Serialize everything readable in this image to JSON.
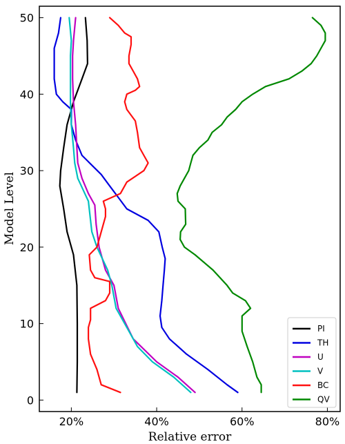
{
  "chart_data": {
    "type": "line",
    "xlabel": "Relative error",
    "ylabel": "Model Level",
    "xlim": [
      0.125,
      0.83
    ],
    "ylim": [
      -1.5,
      51.5
    ],
    "xticks": [
      0.2,
      0.4,
      0.6,
      0.8
    ],
    "xtick_labels": [
      "20%",
      "40%",
      "60%",
      "80%"
    ],
    "yticks": [
      0,
      10,
      20,
      30,
      40,
      50
    ],
    "ytick_labels": [
      "0",
      "10",
      "20",
      "30",
      "40",
      "50"
    ],
    "grid": false,
    "legend_position": "lower-right",
    "series": [
      {
        "name": "PI",
        "color": "#000000",
        "points": [
          [
            0.213,
            1
          ],
          [
            0.214,
            5
          ],
          [
            0.214,
            10
          ],
          [
            0.213,
            15
          ],
          [
            0.205,
            19
          ],
          [
            0.19,
            22
          ],
          [
            0.182,
            25
          ],
          [
            0.173,
            28
          ],
          [
            0.175,
            30
          ],
          [
            0.182,
            33
          ],
          [
            0.19,
            36
          ],
          [
            0.205,
            39
          ],
          [
            0.225,
            42
          ],
          [
            0.238,
            44
          ],
          [
            0.237,
            47
          ],
          [
            0.233,
            50
          ]
        ]
      },
      {
        "name": "TH",
        "color": "#0000e0",
        "points": [
          [
            0.59,
            1
          ],
          [
            0.565,
            2
          ],
          [
            0.52,
            4
          ],
          [
            0.47,
            6
          ],
          [
            0.43,
            8
          ],
          [
            0.412,
            9.5
          ],
          [
            0.408,
            11
          ],
          [
            0.412,
            13
          ],
          [
            0.415,
            15
          ],
          [
            0.418,
            17
          ],
          [
            0.42,
            18.5
          ],
          [
            0.413,
            20
          ],
          [
            0.405,
            22
          ],
          [
            0.38,
            23.5
          ],
          [
            0.33,
            25
          ],
          [
            0.31,
            26.5
          ],
          [
            0.29,
            28
          ],
          [
            0.27,
            29.5
          ],
          [
            0.225,
            32
          ],
          [
            0.21,
            34
          ],
          [
            0.2,
            36
          ],
          [
            0.2,
            38
          ],
          [
            0.18,
            39
          ],
          [
            0.165,
            40
          ],
          [
            0.16,
            42
          ],
          [
            0.16,
            44
          ],
          [
            0.16,
            46
          ],
          [
            0.17,
            48
          ],
          [
            0.175,
            50
          ]
        ]
      },
      {
        "name": "U",
        "color": "#c000c0",
        "points": [
          [
            0.49,
            1
          ],
          [
            0.45,
            3
          ],
          [
            0.4,
            5
          ],
          [
            0.345,
            8
          ],
          [
            0.31,
            12
          ],
          [
            0.3,
            15
          ],
          [
            0.28,
            17
          ],
          [
            0.265,
            20
          ],
          [
            0.258,
            23
          ],
          [
            0.255,
            25.5
          ],
          [
            0.24,
            27
          ],
          [
            0.225,
            29
          ],
          [
            0.215,
            31
          ],
          [
            0.213,
            33
          ],
          [
            0.21,
            36
          ],
          [
            0.205,
            39
          ],
          [
            0.203,
            42
          ],
          [
            0.203,
            45
          ],
          [
            0.205,
            47
          ],
          [
            0.21,
            50
          ]
        ]
      },
      {
        "name": "V",
        "color": "#00c0c0",
        "points": [
          [
            0.48,
            1
          ],
          [
            0.44,
            3
          ],
          [
            0.39,
            5
          ],
          [
            0.355,
            7
          ],
          [
            0.335,
            9
          ],
          [
            0.305,
            12
          ],
          [
            0.295,
            15
          ],
          [
            0.285,
            17
          ],
          [
            0.26,
            20
          ],
          [
            0.248,
            22
          ],
          [
            0.24,
            26
          ],
          [
            0.215,
            29
          ],
          [
            0.208,
            31
          ],
          [
            0.205,
            33
          ],
          [
            0.2,
            36
          ],
          [
            0.198,
            39
          ],
          [
            0.198,
            42
          ],
          [
            0.198,
            45
          ],
          [
            0.2,
            47
          ],
          [
            0.195,
            50
          ]
        ]
      },
      {
        "name": "BC",
        "color": "#ff1010",
        "points": [
          [
            0.315,
            1
          ],
          [
            0.27,
            2
          ],
          [
            0.26,
            4
          ],
          [
            0.245,
            6
          ],
          [
            0.24,
            8
          ],
          [
            0.24,
            9.5
          ],
          [
            0.245,
            10.5
          ],
          [
            0.245,
            12
          ],
          [
            0.28,
            13
          ],
          [
            0.29,
            14
          ],
          [
            0.29,
            15.5
          ],
          [
            0.255,
            16
          ],
          [
            0.245,
            17
          ],
          [
            0.242,
            19
          ],
          [
            0.26,
            20
          ],
          [
            0.27,
            22
          ],
          [
            0.28,
            24
          ],
          [
            0.28,
            25
          ],
          [
            0.275,
            26
          ],
          [
            0.315,
            27
          ],
          [
            0.33,
            28.5
          ],
          [
            0.37,
            30
          ],
          [
            0.38,
            31
          ],
          [
            0.37,
            32
          ],
          [
            0.36,
            33
          ],
          [
            0.355,
            35
          ],
          [
            0.35,
            36.5
          ],
          [
            0.33,
            38
          ],
          [
            0.325,
            39
          ],
          [
            0.33,
            40
          ],
          [
            0.35,
            40.5
          ],
          [
            0.36,
            41
          ],
          [
            0.355,
            42
          ],
          [
            0.345,
            43
          ],
          [
            0.335,
            44
          ],
          [
            0.335,
            45
          ],
          [
            0.34,
            46.5
          ],
          [
            0.34,
            47.5
          ],
          [
            0.325,
            48
          ],
          [
            0.31,
            49
          ],
          [
            0.29,
            50
          ]
        ]
      },
      {
        "name": "QV",
        "color": "#008800",
        "points": [
          [
            0.645,
            1
          ],
          [
            0.645,
            2
          ],
          [
            0.635,
            3
          ],
          [
            0.625,
            5
          ],
          [
            0.612,
            7
          ],
          [
            0.6,
            9
          ],
          [
            0.6,
            11
          ],
          [
            0.62,
            12
          ],
          [
            0.608,
            13
          ],
          [
            0.578,
            14
          ],
          [
            0.565,
            15
          ],
          [
            0.532,
            17
          ],
          [
            0.49,
            19
          ],
          [
            0.465,
            20
          ],
          [
            0.455,
            21
          ],
          [
            0.456,
            22
          ],
          [
            0.468,
            23
          ],
          [
            0.467,
            25
          ],
          [
            0.45,
            26
          ],
          [
            0.448,
            27
          ],
          [
            0.455,
            28
          ],
          [
            0.465,
            29
          ],
          [
            0.475,
            30
          ],
          [
            0.48,
            31
          ],
          [
            0.485,
            32
          ],
          [
            0.5,
            33
          ],
          [
            0.52,
            34
          ],
          [
            0.53,
            35
          ],
          [
            0.552,
            36
          ],
          [
            0.565,
            37
          ],
          [
            0.585,
            38
          ],
          [
            0.6,
            39
          ],
          [
            0.625,
            40
          ],
          [
            0.655,
            41
          ],
          [
            0.71,
            42
          ],
          [
            0.74,
            43
          ],
          [
            0.762,
            44
          ],
          [
            0.775,
            45
          ],
          [
            0.785,
            46
          ],
          [
            0.795,
            47
          ],
          [
            0.795,
            48
          ],
          [
            0.785,
            49
          ],
          [
            0.765,
            50
          ]
        ]
      }
    ]
  }
}
